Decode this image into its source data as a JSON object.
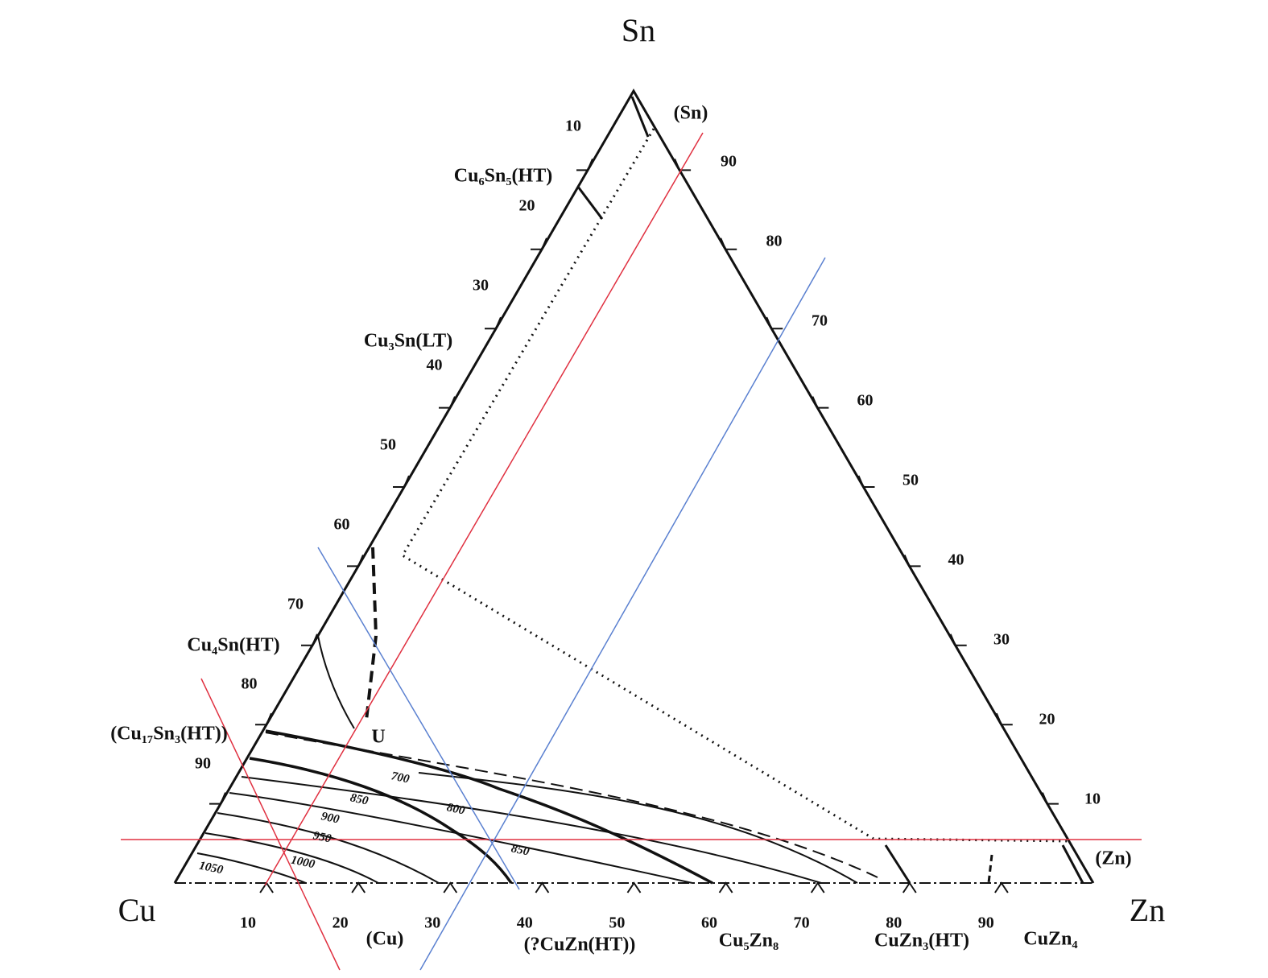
{
  "vertices": {
    "top": "Sn",
    "left": "Cu",
    "right": "Zn"
  },
  "left_axis_ticks": [
    "10",
    "20",
    "30",
    "40",
    "50",
    "60",
    "70",
    "80",
    "90"
  ],
  "right_axis_ticks": [
    "90",
    "80",
    "70",
    "60",
    "50",
    "40",
    "30",
    "20",
    "10"
  ],
  "bottom_axis_ticks": [
    "10",
    "20",
    "30",
    "40",
    "50",
    "60",
    "70",
    "80",
    "90"
  ],
  "phases": [
    "(Sn)",
    "Cu₆Sn₅(HT)",
    "Cu₃Sn(LT)",
    "Cu₄Sn(HT)",
    "(Cu₁₇Sn₃(HT))",
    "U",
    "(Cu)",
    "(?CuZn(HT))",
    "Cu₅Zn₈",
    "CuZn₃(HT)",
    "CuZn₄",
    "(Zn)"
  ],
  "isotherms": [
    "700",
    "800",
    "850",
    "900",
    "950",
    "850",
    "1000",
    "1050"
  ]
}
